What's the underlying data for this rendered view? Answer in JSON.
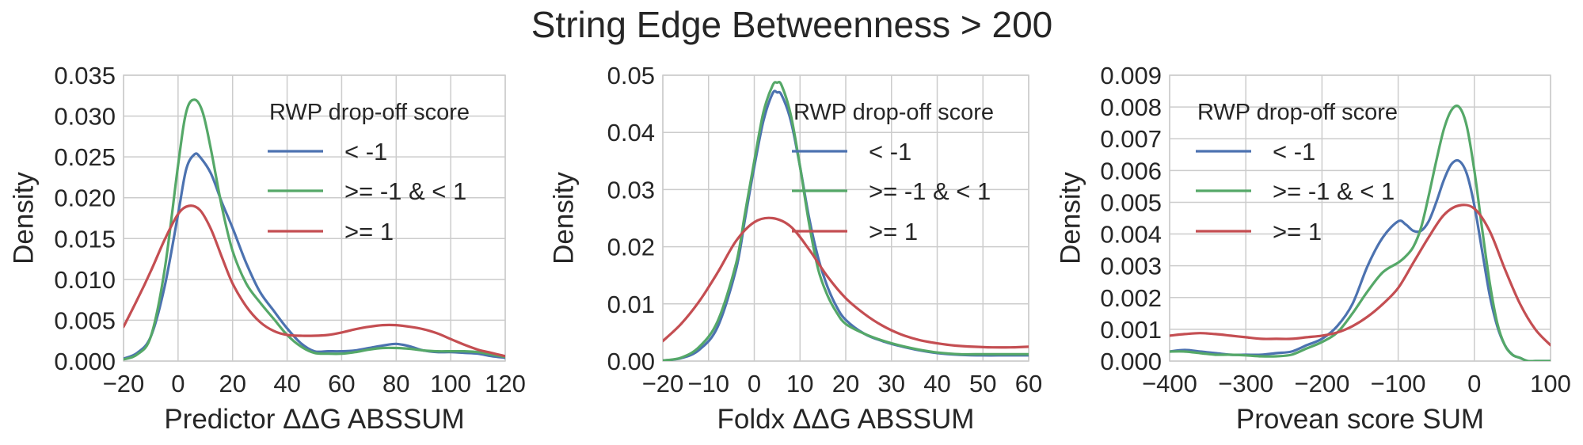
{
  "figure": {
    "title": "String Edge Betweenness > 200"
  },
  "chart_data": [
    {
      "type": "line",
      "xlabel": "Predictor ΔΔG ABSSUM",
      "ylabel": "Density",
      "xlim": [
        -20,
        120
      ],
      "ylim": [
        0,
        0.035
      ],
      "xticks": [
        -20,
        0,
        20,
        40,
        60,
        80,
        100,
        120
      ],
      "xtick_labels": [
        "−20",
        "0",
        "20",
        "40",
        "60",
        "80",
        "100",
        "120"
      ],
      "yticks": [
        0,
        0.005,
        0.01,
        0.015,
        0.02,
        0.025,
        0.03,
        0.035
      ],
      "ytick_labels": [
        "0.000",
        "0.005",
        "0.010",
        "0.015",
        "0.020",
        "0.025",
        "0.030",
        "0.035"
      ],
      "grid": true,
      "legend": {
        "title": "RWP drop-off score",
        "position": "upper right"
      },
      "series": [
        {
          "name": "< -1",
          "color": "#4c72b0",
          "x": [
            -20,
            -15,
            -10,
            -5,
            0,
            3,
            6,
            8,
            12,
            16,
            20,
            25,
            30,
            35,
            40,
            45,
            50,
            55,
            60,
            65,
            70,
            75,
            80,
            85,
            90,
            95,
            100,
            105,
            110,
            115,
            120
          ],
          "y": [
            0.0003,
            0.001,
            0.003,
            0.009,
            0.018,
            0.0235,
            0.0253,
            0.025,
            0.023,
            0.0195,
            0.0163,
            0.012,
            0.0085,
            0.0062,
            0.004,
            0.0022,
            0.0012,
            0.0012,
            0.0012,
            0.0013,
            0.0016,
            0.0019,
            0.0021,
            0.0018,
            0.0013,
            0.0011,
            0.0011,
            0.001,
            0.0009,
            0.0006,
            0.0004
          ]
        },
        {
          "name": ">= -1 & < 1",
          "color": "#55a868",
          "x": [
            -20,
            -15,
            -10,
            -5,
            0,
            3,
            6,
            9,
            12,
            16,
            20,
            25,
            30,
            35,
            40,
            45,
            50,
            55,
            60,
            65,
            70,
            75,
            80,
            85,
            90,
            95,
            100,
            105,
            110,
            115,
            120
          ],
          "y": [
            0.0002,
            0.0008,
            0.003,
            0.011,
            0.024,
            0.0305,
            0.032,
            0.0305,
            0.026,
            0.019,
            0.0135,
            0.0095,
            0.0072,
            0.0052,
            0.0032,
            0.0018,
            0.001,
            0.0009,
            0.0009,
            0.0011,
            0.0014,
            0.0016,
            0.0016,
            0.0015,
            0.0013,
            0.0012,
            0.0012,
            0.0012,
            0.0011,
            0.0008,
            0.0005
          ]
        },
        {
          "name": ">= 1",
          "color": "#c44e52",
          "x": [
            -20,
            -15,
            -10,
            -5,
            0,
            4,
            8,
            12,
            16,
            20,
            25,
            30,
            35,
            40,
            45,
            50,
            55,
            60,
            65,
            70,
            75,
            80,
            85,
            90,
            95,
            100,
            105,
            110,
            115,
            120
          ],
          "y": [
            0.0042,
            0.0075,
            0.011,
            0.0148,
            0.018,
            0.019,
            0.0185,
            0.0162,
            0.0128,
            0.0095,
            0.0067,
            0.0048,
            0.0037,
            0.0032,
            0.0031,
            0.0031,
            0.0032,
            0.0035,
            0.0039,
            0.0042,
            0.0044,
            0.0044,
            0.0042,
            0.0039,
            0.0034,
            0.0027,
            0.002,
            0.0014,
            0.001,
            0.0006
          ]
        }
      ]
    },
    {
      "type": "line",
      "xlabel": "Foldx ΔΔG ABSSUM",
      "ylabel": "Density",
      "xlim": [
        -20,
        60
      ],
      "ylim": [
        0,
        0.05
      ],
      "xticks": [
        -20,
        -10,
        0,
        10,
        20,
        30,
        40,
        50,
        60
      ],
      "xtick_labels": [
        "−20",
        "−10",
        "0",
        "10",
        "20",
        "30",
        "40",
        "50",
        "60"
      ],
      "yticks": [
        0,
        0.01,
        0.02,
        0.03,
        0.04,
        0.05
      ],
      "ytick_labels": [
        "0.00",
        "0.01",
        "0.02",
        "0.03",
        "0.04",
        "0.05"
      ],
      "grid": true,
      "legend": {
        "title": "RWP drop-off score",
        "position": "upper right"
      },
      "series": [
        {
          "name": "< -1",
          "color": "#4c72b0",
          "x": [
            -20,
            -16,
            -12,
            -8,
            -4,
            -2,
            0,
            2,
            4,
            5,
            6,
            8,
            10,
            12,
            14,
            16,
            18,
            20,
            24,
            28,
            32,
            36,
            40,
            45,
            50,
            55,
            60
          ],
          "y": [
            0.0001,
            0.0005,
            0.002,
            0.006,
            0.016,
            0.025,
            0.034,
            0.042,
            0.0468,
            0.047,
            0.0465,
            0.042,
            0.034,
            0.025,
            0.018,
            0.013,
            0.0095,
            0.0072,
            0.0048,
            0.0035,
            0.0026,
            0.0019,
            0.0014,
            0.0011,
            0.001,
            0.001,
            0.001
          ]
        },
        {
          "name": ">= -1 & < 1",
          "color": "#55a868",
          "x": [
            -20,
            -16,
            -12,
            -8,
            -4,
            -2,
            0,
            2,
            4,
            5,
            6,
            8,
            10,
            12,
            14,
            16,
            18,
            20,
            24,
            28,
            32,
            36,
            40,
            45,
            50,
            55,
            60
          ],
          "y": [
            0.0001,
            0.0006,
            0.0025,
            0.007,
            0.017,
            0.026,
            0.035,
            0.0435,
            0.0482,
            0.0487,
            0.0482,
            0.043,
            0.034,
            0.024,
            0.016,
            0.0115,
            0.0085,
            0.0065,
            0.0048,
            0.0036,
            0.0027,
            0.002,
            0.0015,
            0.0012,
            0.0012,
            0.0012,
            0.0012
          ]
        },
        {
          "name": ">= 1",
          "color": "#c44e52",
          "x": [
            -20,
            -16,
            -12,
            -8,
            -4,
            0,
            4,
            8,
            12,
            16,
            20,
            24,
            28,
            32,
            36,
            40,
            44,
            48,
            52,
            56,
            60
          ],
          "y": [
            0.0035,
            0.0065,
            0.0105,
            0.0155,
            0.021,
            0.0243,
            0.025,
            0.0235,
            0.0195,
            0.0148,
            0.011,
            0.0083,
            0.0062,
            0.0047,
            0.0037,
            0.0031,
            0.0027,
            0.0025,
            0.0024,
            0.0024,
            0.0025
          ]
        }
      ]
    },
    {
      "type": "line",
      "xlabel": "Provean score SUM",
      "ylabel": "Density",
      "xlim": [
        -400,
        100
      ],
      "ylim": [
        0,
        0.009
      ],
      "xticks": [
        -400,
        -300,
        -200,
        -100,
        0,
        100
      ],
      "xtick_labels": [
        "−400",
        "−300",
        "−200",
        "−100",
        "0",
        "100"
      ],
      "yticks": [
        0,
        0.001,
        0.002,
        0.003,
        0.004,
        0.005,
        0.006,
        0.007,
        0.008,
        0.009
      ],
      "ytick_labels": [
        "0.000",
        "0.001",
        "0.002",
        "0.003",
        "0.004",
        "0.005",
        "0.006",
        "0.007",
        "0.008",
        "0.009"
      ],
      "grid": true,
      "legend": {
        "title": "RWP drop-off score",
        "position": "upper left"
      },
      "series": [
        {
          "name": "< -1",
          "color": "#4c72b0",
          "x": [
            -400,
            -380,
            -360,
            -340,
            -320,
            -300,
            -280,
            -260,
            -240,
            -220,
            -200,
            -180,
            -160,
            -140,
            -120,
            -100,
            -90,
            -80,
            -70,
            -60,
            -50,
            -40,
            -30,
            -20,
            -10,
            0,
            10,
            20,
            30,
            40,
            50,
            60,
            70,
            80,
            90,
            100
          ],
          "y": [
            0.0003,
            0.00035,
            0.0003,
            0.00025,
            0.0002,
            0.0002,
            0.0002,
            0.00025,
            0.0003,
            0.0005,
            0.0007,
            0.0011,
            0.0018,
            0.003,
            0.0039,
            0.0044,
            0.0043,
            0.0041,
            0.0041,
            0.0044,
            0.005,
            0.0057,
            0.0062,
            0.0063,
            0.0059,
            0.0049,
            0.0035,
            0.0021,
            0.0011,
            0.0005,
            0.0002,
            0.0001,
            0,
            0,
            0,
            0
          ]
        },
        {
          "name": ">= -1 & < 1",
          "color": "#55a868",
          "x": [
            -400,
            -380,
            -360,
            -340,
            -320,
            -300,
            -280,
            -260,
            -240,
            -220,
            -200,
            -180,
            -160,
            -140,
            -120,
            -100,
            -90,
            -80,
            -70,
            -60,
            -50,
            -40,
            -30,
            -20,
            -10,
            0,
            10,
            20,
            30,
            40,
            50,
            60,
            70,
            80,
            90,
            100
          ],
          "y": [
            0.0003,
            0.0003,
            0.00025,
            0.0002,
            0.0002,
            0.00018,
            0.00015,
            0.00015,
            0.0002,
            0.0004,
            0.0006,
            0.0009,
            0.0015,
            0.0022,
            0.0028,
            0.0031,
            0.0033,
            0.0036,
            0.0042,
            0.0052,
            0.0063,
            0.0073,
            0.0079,
            0.008,
            0.0074,
            0.006,
            0.0042,
            0.0025,
            0.0012,
            0.0005,
            0.0002,
            0.0001,
            0,
            0,
            0,
            0
          ]
        },
        {
          "name": ">= 1",
          "color": "#c44e52",
          "x": [
            -400,
            -380,
            -360,
            -340,
            -320,
            -300,
            -280,
            -260,
            -240,
            -220,
            -200,
            -180,
            -160,
            -140,
            -120,
            -100,
            -80,
            -60,
            -40,
            -20,
            0,
            20,
            40,
            60,
            80,
            100
          ],
          "y": [
            0.0008,
            0.00085,
            0.00088,
            0.00085,
            0.0008,
            0.00075,
            0.0007,
            0.0007,
            0.0007,
            0.00075,
            0.0008,
            0.0009,
            0.0011,
            0.0014,
            0.0018,
            0.0023,
            0.0031,
            0.0039,
            0.0046,
            0.0049,
            0.0048,
            0.0041,
            0.0029,
            0.0018,
            0.001,
            0.0005
          ]
        }
      ]
    }
  ]
}
